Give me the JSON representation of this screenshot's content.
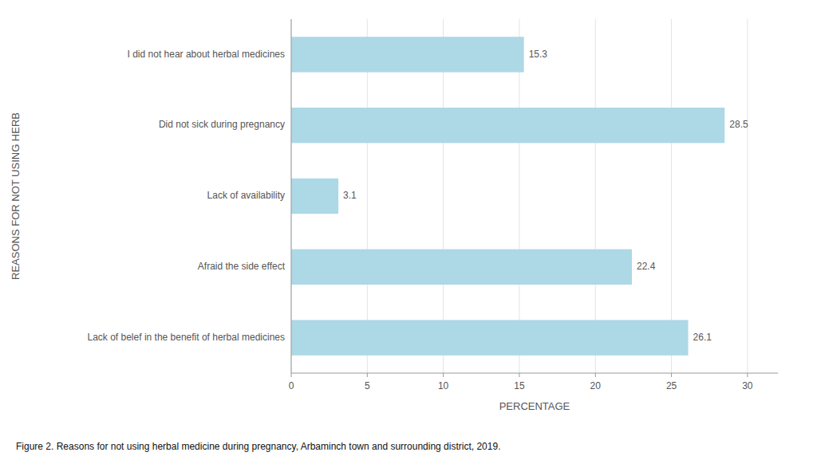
{
  "chart_data": {
    "type": "bar",
    "orientation": "horizontal",
    "categories": [
      "Lack of belef in the benefit of herbal medicines",
      "Afraid the side effect",
      "Lack of availability",
      "Did not sick during pregnancy",
      "I did not hear about herbal medicines"
    ],
    "values": [
      26.1,
      22.4,
      3.1,
      28.5,
      15.3
    ],
    "color": "#add8e6",
    "xlabel": "PERCENTAGE",
    "ylabel": "REASONS FOR NOT USING HERB",
    "caption": "Figure 2. Reasons for not using herbal medicine during pregnancy, Arbaminch town and surrounding district, 2019.",
    "xlim": [
      0,
      32
    ],
    "xticks": [
      0,
      5,
      10,
      15,
      20,
      25,
      30
    ],
    "grid": true,
    "data_labels": true
  }
}
